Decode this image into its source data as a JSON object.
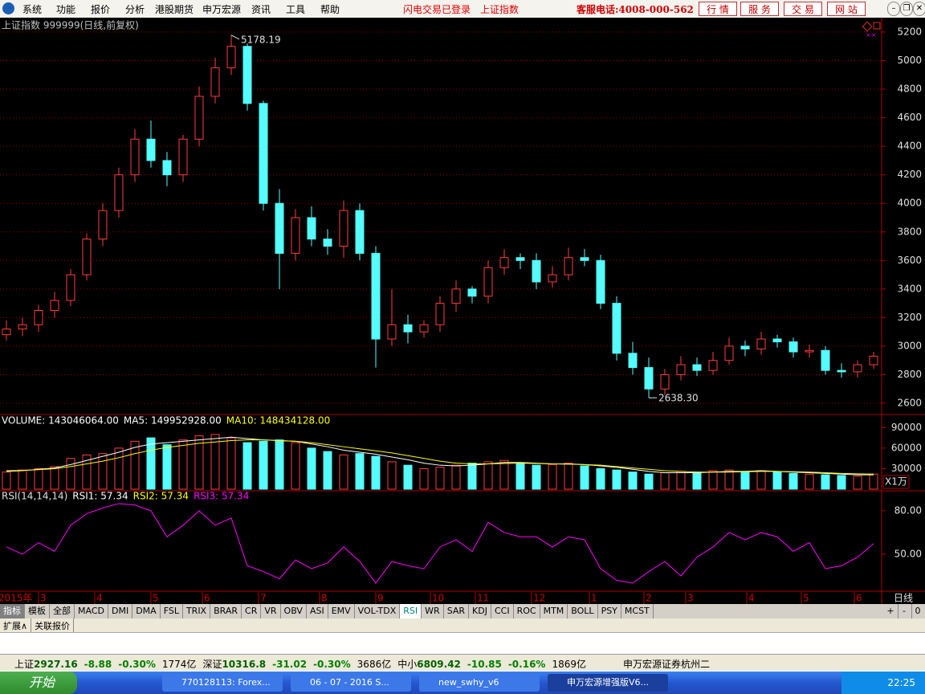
{
  "menu": {
    "items": [
      "系统",
      "功能",
      "报价",
      "分析",
      "港股期货",
      "申万宏源",
      "资讯",
      "工具",
      "帮助"
    ],
    "status": [
      "闪电交易已登录",
      "上证指数"
    ],
    "hotline": "客服电话:4008-000-562",
    "buttons": [
      "行 情",
      "服 务",
      "交 易",
      "网 站"
    ]
  },
  "chart_data": [
    {
      "type": "candlestick",
      "title": "上证指数 999999(日线,前复权)",
      "open": [
        3080,
        3120,
        3150,
        3250,
        3320,
        3500,
        3750,
        3950,
        4200,
        4450,
        4300,
        4200,
        4450,
        4750,
        4950,
        5100,
        4700,
        4000,
        3650,
        3900,
        3750,
        3700,
        3950,
        3650,
        3050,
        3150,
        3100,
        3150,
        3300,
        3400,
        3350,
        3550,
        3620,
        3600,
        3450,
        3500,
        3620,
        3600,
        3300,
        2950,
        2850,
        2700,
        2800,
        2870,
        2830,
        2900,
        3000,
        2980,
        3050,
        3030,
        2960,
        2970,
        2830,
        2820,
        2870
      ],
      "high": [
        3180,
        3200,
        3290,
        3380,
        3540,
        3790,
        4000,
        4250,
        4520,
        4580,
        4360,
        4480,
        4820,
        5020,
        5178.19,
        5120,
        4720,
        4100,
        3960,
        3980,
        3820,
        4020,
        4000,
        3700,
        3400,
        3220,
        3180,
        3350,
        3460,
        3420,
        3600,
        3680,
        3650,
        3650,
        3560,
        3690,
        3680,
        3640,
        3350,
        3030,
        2920,
        2840,
        2930,
        2920,
        2960,
        3060,
        3040,
        3100,
        3080,
        3060,
        3010,
        3000,
        2880,
        2900,
        2960
      ],
      "low": [
        3040,
        3070,
        3100,
        3200,
        3280,
        3460,
        3700,
        3900,
        4150,
        4250,
        4120,
        4150,
        4400,
        4700,
        4900,
        4650,
        3950,
        3400,
        3600,
        3700,
        3640,
        3620,
        3600,
        2850,
        3000,
        3020,
        3060,
        3100,
        3240,
        3300,
        3300,
        3500,
        3540,
        3400,
        3410,
        3460,
        3560,
        3260,
        2900,
        2800,
        2638.3,
        2660,
        2760,
        2790,
        2800,
        2870,
        2930,
        2940,
        2990,
        2920,
        2920,
        2800,
        2780,
        2780,
        2840
      ],
      "close": [
        3120,
        3150,
        3250,
        3320,
        3500,
        3750,
        3950,
        4200,
        4450,
        4300,
        4200,
        4450,
        4750,
        4950,
        5100,
        4700,
        4000,
        3650,
        3900,
        3750,
        3700,
        3950,
        3650,
        3050,
        3150,
        3100,
        3150,
        3300,
        3400,
        3350,
        3550,
        3620,
        3600,
        3450,
        3500,
        3620,
        3600,
        3300,
        2950,
        2850,
        2700,
        2800,
        2870,
        2830,
        2900,
        3000,
        2980,
        3050,
        3030,
        2960,
        2970,
        2830,
        2820,
        2870,
        2930
      ],
      "up_color": "#ff3c3c",
      "down_color": "#54fcfc",
      "high_label": "5178.19",
      "low_label": "2638.30",
      "ylim": [
        2527,
        5284
      ],
      "yticks": [
        2600,
        2800,
        3000,
        3200,
        3400,
        3600,
        3800,
        4000,
        4200,
        4400,
        4600,
        4800,
        5000,
        5200
      ],
      "grid": true
    },
    {
      "type": "bar",
      "unit": "X1万",
      "series": [
        {
          "name": "VOLUME: 143046064.00",
          "color": "#ffffff",
          "values": [
            25000,
            28000,
            30000,
            33000,
            45000,
            50000,
            52000,
            60000,
            70000,
            75000,
            65000,
            72000,
            78000,
            80000,
            75000,
            68000,
            70000,
            72000,
            68000,
            60000,
            55000,
            50000,
            52000,
            48000,
            40000,
            35000,
            30000,
            32000,
            35000,
            38000,
            40000,
            42000,
            38000,
            35000,
            36000,
            38000,
            34000,
            30000,
            28000,
            25000,
            22000,
            24000,
            26000,
            25000,
            27000,
            28000,
            26000,
            27000,
            25000,
            23000,
            22000,
            21000,
            20000,
            19000,
            22000
          ]
        },
        {
          "name": "MA5: 149952928.00",
          "color": "#ffffff",
          "values": [
            26000,
            27000,
            29000,
            31000,
            36000,
            42000,
            48000,
            54000,
            61000,
            66000,
            68000,
            70000,
            72000,
            74000,
            76000,
            74000,
            72000,
            71000,
            70000,
            66000,
            62000,
            57000,
            54000,
            51000,
            47000,
            43000,
            38000,
            35000,
            34000,
            35000,
            37000,
            39000,
            39000,
            38000,
            37000,
            37000,
            36000,
            34000,
            32000,
            29000,
            26000,
            24000,
            24000,
            24000,
            25000,
            26000,
            26000,
            27000,
            26000,
            25000,
            24000,
            23000,
            22000,
            21000,
            21000
          ]
        },
        {
          "name": "MA10: 148434128.00",
          "color": "#ffff00",
          "values": [
            27000,
            27500,
            28500,
            30000,
            33000,
            37000,
            41000,
            46000,
            52000,
            57000,
            61000,
            64000,
            67000,
            69000,
            71000,
            72000,
            72000,
            71000,
            70000,
            68000,
            65000,
            62000,
            59000,
            56000,
            53000,
            49000,
            45000,
            41000,
            38000,
            37000,
            37000,
            37500,
            38000,
            37500,
            37000,
            36500,
            36000,
            35000,
            33000,
            31000,
            29000,
            27000,
            26000,
            25000,
            25000,
            25000,
            25500,
            26000,
            26000,
            25500,
            25000,
            24000,
            23000,
            22500,
            22000
          ]
        }
      ],
      "ylim": [
        0,
        108000
      ],
      "yticks": [
        30000,
        60000,
        90000
      ]
    },
    {
      "type": "line",
      "title": "RSI(14,14,14)",
      "legend": [
        {
          "name": "RSI1: 57.34",
          "color": "#ffffff"
        },
        {
          "name": "RSI2: 57.34",
          "color": "#ffff00"
        },
        {
          "name": "RSI3: 57.34",
          "color": "#ff00ff"
        }
      ],
      "series": [
        {
          "color": "#ff00ff",
          "values": [
            55,
            50,
            58,
            52,
            70,
            78,
            82,
            85,
            84,
            80,
            62,
            70,
            80,
            70,
            75,
            42,
            38,
            33,
            46,
            40,
            44,
            55,
            45,
            30,
            45,
            42,
            40,
            55,
            60,
            52,
            72,
            65,
            62,
            62,
            55,
            62,
            60,
            40,
            32,
            30,
            38,
            45,
            35,
            48,
            55,
            65,
            60,
            65,
            62,
            52,
            58,
            40,
            42,
            48,
            57.34
          ]
        }
      ],
      "ylim": [
        25,
        93.3
      ],
      "yticks": [
        {
          "value": 50,
          "label": "50.00"
        },
        {
          "value": 80,
          "label": "80.00"
        }
      ],
      "xticks": [
        {
          "value": -0.3,
          "label": "2015年"
        },
        {
          "value": 2.3,
          "label": "3"
        },
        {
          "value": 5.8,
          "label": "4"
        },
        {
          "value": 9.3,
          "label": "5"
        },
        {
          "value": 12.5,
          "label": "6"
        },
        {
          "value": 16,
          "label": "7"
        },
        {
          "value": 19.8,
          "label": "8"
        },
        {
          "value": 23.3,
          "label": "9"
        },
        {
          "value": 26.7,
          "label": "10"
        },
        {
          "value": 29.5,
          "label": "11"
        },
        {
          "value": 33,
          "label": "12"
        },
        {
          "value": 36.6,
          "label": "1"
        },
        {
          "value": 40,
          "label": "2"
        },
        {
          "value": 42.6,
          "label": "3"
        },
        {
          "value": 46.4,
          "label": "4"
        },
        {
          "value": 49.8,
          "label": "5"
        },
        {
          "value": 53.1,
          "label": "6"
        }
      ],
      "period": "日线"
    }
  ],
  "tabs": {
    "items": [
      "指标",
      "模板",
      "全部",
      "MACD",
      "DMI",
      "DMA",
      "FSL",
      "TRIX",
      "BRAR",
      "CR",
      "VR",
      "OBV",
      "ASI",
      "EMV",
      "VOL-TDX",
      "RSI",
      "WR",
      "SAR",
      "KDJ",
      "CCI",
      "ROC",
      "MTM",
      "BOLL",
      "PSY",
      "MCST"
    ],
    "selected_index": 15,
    "zoom": [
      "+",
      "-",
      "0"
    ]
  },
  "sub_tabs": [
    "扩展∧",
    "关联报价"
  ],
  "status_bar": {
    "quotes": [
      {
        "name": "上证",
        "price": "2927.16",
        "change": "-8.88",
        "pct": "-0.30%",
        "amount": "1774亿"
      },
      {
        "name": "深证",
        "price": "10316.8",
        "change": "-31.02",
        "pct": "-0.30%",
        "amount": "3686亿"
      },
      {
        "name": "中小",
        "price": "6809.42",
        "change": "-10.85",
        "pct": "-0.16%",
        "amount": "1869亿"
      }
    ],
    "broker": "申万宏源证券杭州二"
  },
  "taskbar": {
    "start": "开始",
    "windows": [
      "770128113: Forex...",
      "06 - 07 - 2016 S...",
      "new_swhy_v6",
      "申万宏源增强版V6..."
    ],
    "clock": "22:25"
  }
}
